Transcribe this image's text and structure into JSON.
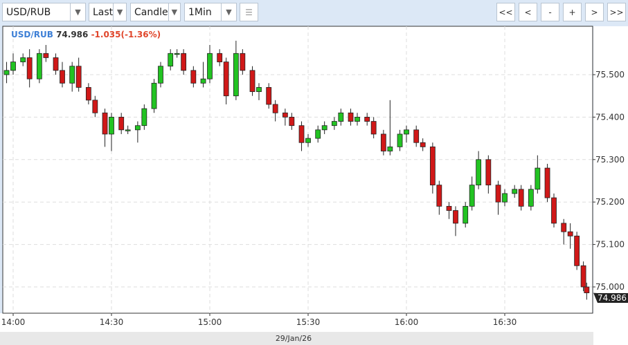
{
  "toolbar": {
    "symbol": "USD/RUB",
    "price_type": "Last",
    "chart_type": "Candle",
    "interval": "1Min",
    "nav": [
      "<<",
      "<",
      "-",
      "+",
      ">",
      ">>"
    ]
  },
  "header": {
    "symbol": "USD/RUB",
    "last": "74.986",
    "change": "-1.035(-1.36%)"
  },
  "colors": {
    "up": "#22c322",
    "down": "#d01818",
    "symbol": "#3d7fd6",
    "change": "#e0452a"
  },
  "chart_data": {
    "type": "candlestick",
    "date_label": "29/Jan/26",
    "x_ticks": [
      "14:00",
      "14:30",
      "15:00",
      "15:30",
      "16:00",
      "16:30"
    ],
    "y_ticks": [
      "75.500",
      "75.400",
      "75.300",
      "75.200",
      "75.100",
      "75.000"
    ],
    "ylim": [
      74.93,
      75.61
    ],
    "last_label": "74.986",
    "grid": true,
    "candles": [
      [
        "13:58",
        75.5,
        75.53,
        75.48,
        75.51
      ],
      [
        "14:00",
        75.51,
        75.55,
        75.5,
        75.53
      ],
      [
        "14:03",
        75.53,
        75.55,
        75.52,
        75.54
      ],
      [
        "14:05",
        75.54,
        75.56,
        75.47,
        75.49
      ],
      [
        "14:08",
        75.49,
        75.56,
        75.48,
        75.55
      ],
      [
        "14:10",
        75.55,
        75.57,
        75.53,
        75.54
      ],
      [
        "14:13",
        75.54,
        75.55,
        75.5,
        75.51
      ],
      [
        "14:15",
        75.51,
        75.53,
        75.47,
        75.48
      ],
      [
        "14:18",
        75.48,
        75.53,
        75.46,
        75.52
      ],
      [
        "14:20",
        75.52,
        75.54,
        75.46,
        75.47
      ],
      [
        "14:23",
        75.47,
        75.48,
        75.43,
        75.44
      ],
      [
        "14:25",
        75.44,
        75.45,
        75.4,
        75.41
      ],
      [
        "14:28",
        75.41,
        75.42,
        75.33,
        75.36
      ],
      [
        "14:30",
        75.36,
        75.41,
        75.32,
        75.4
      ],
      [
        "14:33",
        75.4,
        75.41,
        75.36,
        75.37
      ],
      [
        "14:35",
        75.37,
        75.38,
        75.36,
        75.37
      ],
      [
        "14:38",
        75.37,
        75.39,
        75.34,
        75.38
      ],
      [
        "14:40",
        75.38,
        75.43,
        75.37,
        75.42
      ],
      [
        "14:43",
        75.42,
        75.49,
        75.41,
        75.48
      ],
      [
        "14:45",
        75.48,
        75.53,
        75.47,
        75.52
      ],
      [
        "14:48",
        75.52,
        75.56,
        75.51,
        75.55
      ],
      [
        "14:50",
        75.55,
        75.56,
        75.54,
        75.55
      ],
      [
        "14:52",
        75.55,
        75.56,
        75.5,
        75.51
      ],
      [
        "14:55",
        75.51,
        75.52,
        75.47,
        75.48
      ],
      [
        "14:58",
        75.48,
        75.53,
        75.47,
        75.49
      ],
      [
        "15:00",
        75.49,
        75.57,
        75.48,
        75.55
      ],
      [
        "15:03",
        75.55,
        75.56,
        75.52,
        75.53
      ],
      [
        "15:05",
        75.53,
        75.54,
        75.43,
        75.45
      ],
      [
        "15:08",
        75.45,
        75.58,
        75.44,
        75.55
      ],
      [
        "15:10",
        75.55,
        75.56,
        75.5,
        75.51
      ],
      [
        "15:13",
        75.51,
        75.52,
        75.45,
        75.46
      ],
      [
        "15:15",
        75.46,
        75.48,
        75.44,
        75.47
      ],
      [
        "15:18",
        75.47,
        75.48,
        75.42,
        75.43
      ],
      [
        "15:20",
        75.43,
        75.44,
        75.39,
        75.41
      ],
      [
        "15:23",
        75.41,
        75.42,
        75.38,
        75.4
      ],
      [
        "15:25",
        75.4,
        75.41,
        75.37,
        75.38
      ],
      [
        "15:28",
        75.38,
        75.39,
        75.32,
        75.34
      ],
      [
        "15:30",
        75.34,
        75.36,
        75.33,
        75.35
      ],
      [
        "15:33",
        75.35,
        75.38,
        75.34,
        75.37
      ],
      [
        "15:35",
        75.37,
        75.39,
        75.36,
        75.38
      ],
      [
        "15:38",
        75.38,
        75.4,
        75.37,
        75.39
      ],
      [
        "15:40",
        75.39,
        75.42,
        75.38,
        75.41
      ],
      [
        "15:43",
        75.41,
        75.42,
        75.38,
        75.39
      ],
      [
        "15:45",
        75.39,
        75.41,
        75.38,
        75.4
      ],
      [
        "15:48",
        75.4,
        75.41,
        75.38,
        75.39
      ],
      [
        "15:50",
        75.39,
        75.4,
        75.35,
        75.36
      ],
      [
        "15:53",
        75.36,
        75.37,
        75.31,
        75.32
      ],
      [
        "15:55",
        75.32,
        75.44,
        75.31,
        75.33
      ],
      [
        "15:58",
        75.33,
        75.37,
        75.32,
        75.36
      ],
      [
        "16:00",
        75.36,
        75.38,
        75.34,
        75.37
      ],
      [
        "16:03",
        75.37,
        75.38,
        75.33,
        75.34
      ],
      [
        "16:05",
        75.34,
        75.35,
        75.32,
        75.33
      ],
      [
        "16:08",
        75.33,
        75.34,
        75.22,
        75.24
      ],
      [
        "16:10",
        75.24,
        75.25,
        75.17,
        75.19
      ],
      [
        "16:13",
        75.19,
        75.2,
        75.16,
        75.18
      ],
      [
        "16:15",
        75.18,
        75.19,
        75.12,
        75.15
      ],
      [
        "16:18",
        75.15,
        75.2,
        75.14,
        75.19
      ],
      [
        "16:20",
        75.19,
        75.26,
        75.18,
        75.24
      ],
      [
        "16:22",
        75.24,
        75.32,
        75.23,
        75.3
      ],
      [
        "16:25",
        75.3,
        75.31,
        75.22,
        75.24
      ],
      [
        "16:28",
        75.24,
        75.25,
        75.17,
        75.2
      ],
      [
        "16:30",
        75.2,
        75.23,
        75.19,
        75.22
      ],
      [
        "16:33",
        75.22,
        75.24,
        75.21,
        75.23
      ],
      [
        "16:35",
        75.23,
        75.24,
        75.18,
        75.19
      ],
      [
        "16:38",
        75.19,
        75.24,
        75.18,
        75.23
      ],
      [
        "16:40",
        75.23,
        75.31,
        75.22,
        75.28
      ],
      [
        "16:43",
        75.28,
        75.29,
        75.2,
        75.21
      ],
      [
        "16:45",
        75.21,
        75.22,
        75.14,
        75.15
      ],
      [
        "16:48",
        75.15,
        75.16,
        75.1,
        75.13
      ],
      [
        "16:50",
        75.13,
        75.15,
        75.09,
        75.12
      ],
      [
        "16:52",
        75.12,
        75.13,
        75.04,
        75.05
      ],
      [
        "16:54",
        75.05,
        75.06,
        74.99,
        75.0
      ],
      [
        "16:55",
        75.0,
        75.01,
        74.97,
        74.986
      ]
    ]
  }
}
